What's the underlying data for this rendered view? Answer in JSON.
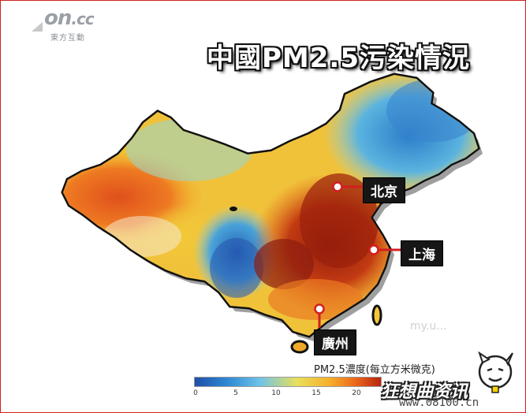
{
  "logo": {
    "main": "on",
    "suffix": ".cc",
    "sub": "東方互動"
  },
  "title": "中國PM2.5污染情況",
  "cities": [
    {
      "name": "北京"
    },
    {
      "name": "上海"
    },
    {
      "name": "廣州"
    }
  ],
  "legend": {
    "title": "PM2.5濃度(每立方米微克)",
    "ticks": [
      "0",
      "5",
      "10",
      "15",
      "20"
    ],
    "colors": [
      "#1f4fa8",
      "#2e8ad4",
      "#6fc3e8",
      "#e8e05a",
      "#f6b12c",
      "#ec6a1c",
      "#b8240e"
    ]
  },
  "watermark": {
    "brand": "狂想曲资讯",
    "url": "www.08100.cn",
    "faint": "my.u..."
  }
}
